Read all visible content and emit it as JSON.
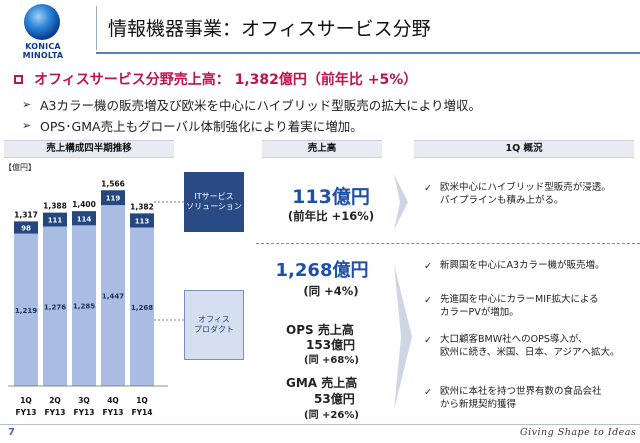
{
  "header": {
    "logo_text": "KONICA MINOLTA",
    "title": "情報機器事業：オフィスサービス分野"
  },
  "headline": "オフィスサービス分野売上高： 1,382億円（前年比 +5%）",
  "bullets": [
    "A3カラー機の販売増及び欧米を中心にハイブリッド型販売の拡大により増収。",
    "OPS･GMA売上もグローバル体制強化により着実に増加。"
  ],
  "section_headers": {
    "chart": "売上構成四半期推移",
    "sales": "売上高",
    "overview": "1Q 概況"
  },
  "chart_data": {
    "type": "bar",
    "unit_label": "【億円】",
    "categories": [
      "1Q FY13",
      "2Q FY13",
      "3Q FY13",
      "4Q FY13",
      "1Q FY14"
    ],
    "category_lines": [
      [
        "1Q",
        "FY13"
      ],
      [
        "2Q",
        "FY13"
      ],
      [
        "3Q",
        "FY13"
      ],
      [
        "4Q",
        "FY13"
      ],
      [
        "1Q",
        "FY14"
      ]
    ],
    "series": [
      {
        "name": "オフィスプロダクト",
        "values": [
          1219,
          1276,
          1285,
          1447,
          1268
        ],
        "color": "#a9bde3"
      },
      {
        "name": "ITサービスソリューション",
        "values": [
          98,
          111,
          114,
          119,
          113
        ],
        "color": "#24477f"
      }
    ],
    "totals": [
      "1,317",
      "1,388",
      "1,400",
      "1,566",
      "1,382"
    ],
    "bottom_labels": [
      "1,219",
      "1,276",
      "1,285",
      "1,447",
      "1,268"
    ],
    "top_labels": [
      "98",
      "111",
      "114",
      "119",
      "113"
    ]
  },
  "segments": {
    "it_label_line1": "ITサービス",
    "it_label_line2": "ソリューション",
    "office_label_line1": "オフィス",
    "office_label_line2": "プロダクト"
  },
  "sales": {
    "it_value": "113億円",
    "it_change": "(前年比 +16%)",
    "office_value": "1,268億円",
    "office_change": "(同 +4%)",
    "ops_label": "OPS 売上高",
    "ops_value": "153億円",
    "ops_change": "(同 +68%)",
    "gma_label": "GMA 売上高",
    "gma_value": "53億円",
    "gma_change": "(同 +26%)"
  },
  "overview": {
    "it_notes": [
      "欧米中心にハイブリッド型販売が浸透。",
      "パイプラインも積み上がる。"
    ],
    "office_notes": [
      [
        "新興国を中心にA3カラー機が販売増。"
      ],
      [
        "先進国を中心にカラーMIF拡大による",
        "カラーPVが増加。"
      ],
      [
        "大口顧客BMW社へのOPS導入が、",
        "欧州に続き、米国、日本、アジアへ拡大。"
      ],
      [
        "欧州に本社を持つ世界有数の食品会社",
        "から新規契約獲得"
      ]
    ]
  },
  "footer": {
    "page_number": "7",
    "tagline": "Giving Shape to Ideas"
  },
  "colors": {
    "accent": "#c0124b",
    "navy": "#24477f",
    "light_bar": "#a9bde3",
    "value_blue": "#1f4fa8"
  }
}
